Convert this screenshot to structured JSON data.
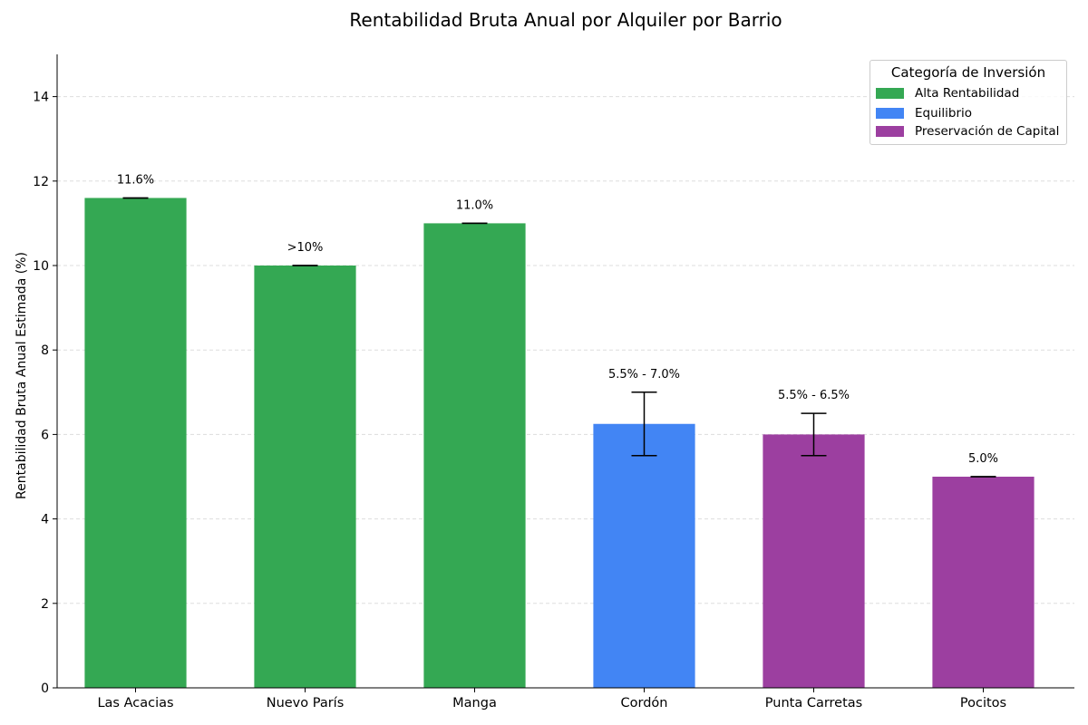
{
  "chart_data": {
    "type": "bar",
    "title": "Rentabilidad Bruta Anual por Alquiler por Barrio",
    "xlabel": "",
    "ylabel": "Rentabilidad Bruta Anual Estimada (%)",
    "ylim": [
      0,
      15
    ],
    "yticks": [
      0,
      2,
      4,
      6,
      8,
      10,
      12,
      14
    ],
    "grid": true,
    "legend_position": "top-right",
    "legend_title": "Categoría de Inversión",
    "legend": [
      {
        "name": "Alta Rentabilidad",
        "color": "#34a853"
      },
      {
        "name": "Equilibrio",
        "color": "#4285f4"
      },
      {
        "name": "Preservación de Capital",
        "color": "#9c3fa0"
      }
    ],
    "categories": [
      "Las Acacias",
      "Nuevo París",
      "Manga",
      "Cordón",
      "Punta Carretas",
      "Pocitos"
    ],
    "values": [
      11.6,
      10.0,
      11.0,
      6.25,
      6.0,
      5.0
    ],
    "error_low": [
      11.6,
      10.0,
      11.0,
      5.5,
      5.5,
      5.0
    ],
    "error_high": [
      11.6,
      10.0,
      11.0,
      7.0,
      6.5,
      5.0
    ],
    "labels": [
      "11.6%",
      ">10%",
      "11.0%",
      "5.5% - 7.0%",
      "5.5% - 6.5%",
      "5.0%"
    ],
    "bar_category": [
      "Alta Rentabilidad",
      "Alta Rentabilidad",
      "Alta Rentabilidad",
      "Equilibrio",
      "Preservación de Capital",
      "Preservación de Capital"
    ]
  }
}
